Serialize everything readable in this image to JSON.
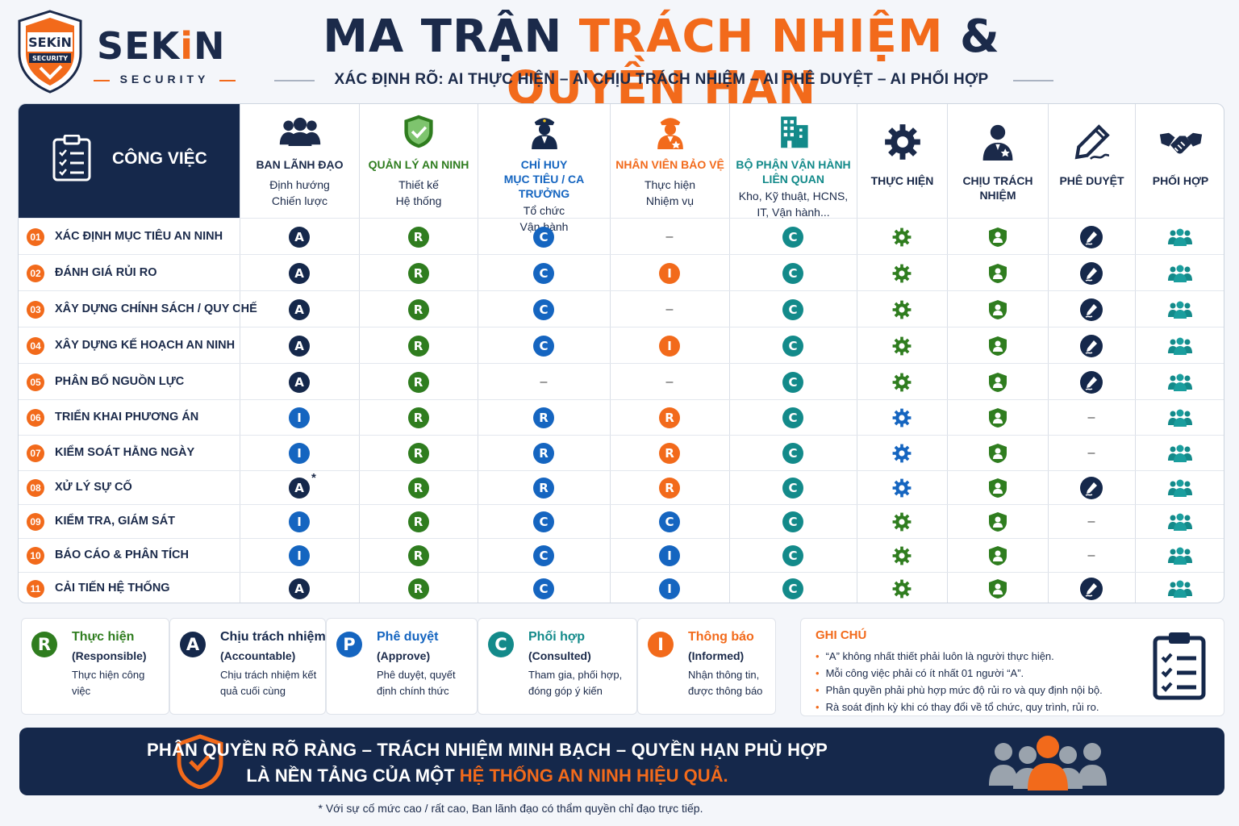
{
  "brand": {
    "name_a": "SEK",
    "name_b": "i",
    "name_c": "N",
    "sub": "SECURITY",
    "badge_text": "SEKiN",
    "badge_sub": "SECURITY",
    "brand_color": "#f26a1b",
    "navy": "#15284b"
  },
  "header": {
    "title_part1": "MA TRẬN ",
    "title_part2": "TRÁCH NHIỆM",
    "title_part3": " & ",
    "title_part4": "QUYỀN HẠN",
    "subtitle": "XÁC ĐỊNH RÕ: AI THỰC HIỆN – AI CHỊU TRÁCH NHIỆM – AI PHÊ DUYỆT – AI PHỐI HỢP"
  },
  "matrix": {
    "first_col_label": "CÔNG VIỆC",
    "columns": [
      {
        "title": "BAN LÃNH ĐẠO",
        "title2": "",
        "sub1": "Định hướng",
        "sub2": "Chiến lược",
        "icon": "team-icon",
        "color": "#1b2a4a"
      },
      {
        "title": "QUẢN LÝ AN NINH",
        "title2": "",
        "sub1": "Thiết kế",
        "sub2": "Hệ thống",
        "icon": "shield-check-icon",
        "color": "#2f7d1f"
      },
      {
        "title": "CHỈ HUY",
        "title2": "MỤC TIÊU / CA TRƯỞNG",
        "sub1": "Tổ chức",
        "sub2": "Vận hành",
        "icon": "officer-icon",
        "color": "#1565c0"
      },
      {
        "title": "NHÂN VIÊN BẢO VỆ",
        "title2": "",
        "sub1": "Thực hiện",
        "sub2": "Nhiệm vụ",
        "icon": "guard-icon",
        "color": "#f26a1b"
      },
      {
        "title": "BỘ PHẬN VẬN HÀNH",
        "title2": "LIÊN QUAN",
        "sub1": "Kho, Kỹ thuật, HCNS,",
        "sub2": "IT, Vận hành...",
        "icon": "building-icon",
        "color": "#138a8a"
      },
      {
        "title": "THỰC HIỆN",
        "icon": "gear-icon",
        "color": "#1b2a4a"
      },
      {
        "title": "CHỊU TRÁCH NHIỆM",
        "icon": "person-badge-icon",
        "color": "#1b2a4a"
      },
      {
        "title": "PHÊ DUYỆT",
        "icon": "pen-sign-icon",
        "color": "#1b2a4a"
      },
      {
        "title": "PHỐI HỢP",
        "icon": "handshake-icon",
        "color": "#1b2a4a"
      }
    ],
    "rows": [
      {
        "num": "01",
        "task": "XÁC ĐỊNH MỤC TIÊU AN NINH",
        "roles": [
          "A",
          "R",
          "C",
          "-",
          "C"
        ],
        "exec": "green",
        "approve": true
      },
      {
        "num": "02",
        "task": "ĐÁNH GIÁ RỦI RO",
        "roles": [
          "A",
          "R",
          "C",
          "I",
          "C"
        ],
        "exec": "green",
        "approve": true
      },
      {
        "num": "03",
        "task": "XÂY DỰNG CHÍNH SÁCH / QUY CHẾ",
        "roles": [
          "A",
          "R",
          "C",
          "-",
          "C"
        ],
        "exec": "green",
        "approve": true
      },
      {
        "num": "04",
        "task": "XÂY DỰNG KẾ HOẠCH AN NINH",
        "roles": [
          "A",
          "R",
          "C",
          "I",
          "C"
        ],
        "exec": "green",
        "approve": true
      },
      {
        "num": "05",
        "task": "PHÂN BỔ NGUỒN LỰC",
        "roles": [
          "A",
          "R",
          "-",
          "-",
          "C"
        ],
        "exec": "green",
        "approve": true
      },
      {
        "num": "06",
        "task": "TRIỂN KHAI PHƯƠNG ÁN",
        "roles": [
          "I",
          "R",
          "R",
          "R",
          "C"
        ],
        "exec": "blue",
        "approve": false
      },
      {
        "num": "07",
        "task": "KIỂM SOÁT HẰNG NGÀY",
        "roles": [
          "I",
          "R",
          "R",
          "R",
          "C"
        ],
        "exec": "blue",
        "approve": false
      },
      {
        "num": "08",
        "task": "XỬ LÝ SỰ CỐ",
        "roles": [
          "A",
          "R",
          "R",
          "R",
          "C"
        ],
        "star": "*",
        "exec": "blue",
        "approve": true
      },
      {
        "num": "09",
        "task": "KIỂM TRA, GIÁM SÁT",
        "roles": [
          "I",
          "R",
          "C",
          "C",
          "C"
        ],
        "exec": "green",
        "approve": false
      },
      {
        "num": "10",
        "task": "BÁO CÁO & PHÂN TÍCH",
        "roles": [
          "I",
          "R",
          "C",
          "I",
          "C"
        ],
        "exec": "green",
        "approve": false
      },
      {
        "num": "11",
        "task": "CẢI TIẾN HỆ THỐNG",
        "roles": [
          "A",
          "R",
          "C",
          "I",
          "C"
        ],
        "exec": "green",
        "approve": true
      }
    ],
    "dash": "–"
  },
  "legend": [
    {
      "letter": "R",
      "title": "Thực hiện",
      "en": "(Responsible)",
      "desc": "Thực hiện công việc",
      "color": "#2f7d1f"
    },
    {
      "letter": "A",
      "title": "Chịu trách nhiệm",
      "en": "(Accountable)",
      "desc": "Chịu trách nhiệm kết quả cuối cùng",
      "color": "#15284b"
    },
    {
      "letter": "P",
      "title": "Phê duyệt",
      "en": "(Approve)",
      "desc": "Phê duyệt, quyết định chính thức",
      "color": "#1565c0"
    },
    {
      "letter": "C",
      "title": "Phối hợp",
      "en": "(Consulted)",
      "desc": "Tham gia, phối hợp, đóng góp ý kiến",
      "color": "#138a8a"
    },
    {
      "letter": "I",
      "title": "Thông báo",
      "en": "(Informed)",
      "desc": "Nhận thông tin, được thông báo",
      "color": "#f26a1b"
    }
  ],
  "notes": {
    "title": "GHI CHÚ",
    "items": [
      "“A” không nhất thiết phải luôn là người thực hiện.",
      "Mỗi công việc phải có ít nhất 01 người “A”.",
      "Phân quyền phải phù hợp mức độ rủi ro và quy định nội bộ.",
      "Rà soát định kỳ khi có thay đổi về tổ chức, quy trình, rủi ro."
    ]
  },
  "banner": {
    "line1": "PHÂN QUYỀN RÕ RÀNG – TRÁCH NHIỆM MINH BẠCH – QUYỀN HẠN PHÙ HỢP",
    "line2a": "LÀ NỀN TẢNG CỦA MỘT ",
    "line2b": "HỆ THỐNG AN NINH HIỆU QUẢ."
  },
  "footnote": "* Với sự cố mức cao / rất cao, Ban lãnh đạo có thẩm quyền chỉ đạo trực tiếp.",
  "role_colors": {
    "A": "#15284b",
    "R": "#2f7d1f",
    "C": "#1565c0",
    "C_teal": "#138a8a",
    "I": "#1565c0",
    "I_orange": "#f26a1b",
    "R_orange": "#f26a1b",
    "R_blue": "#1565c0",
    "C_blue": "#1565c0",
    "exec_green": "#2f7d1f",
    "exec_blue": "#1565c0"
  }
}
